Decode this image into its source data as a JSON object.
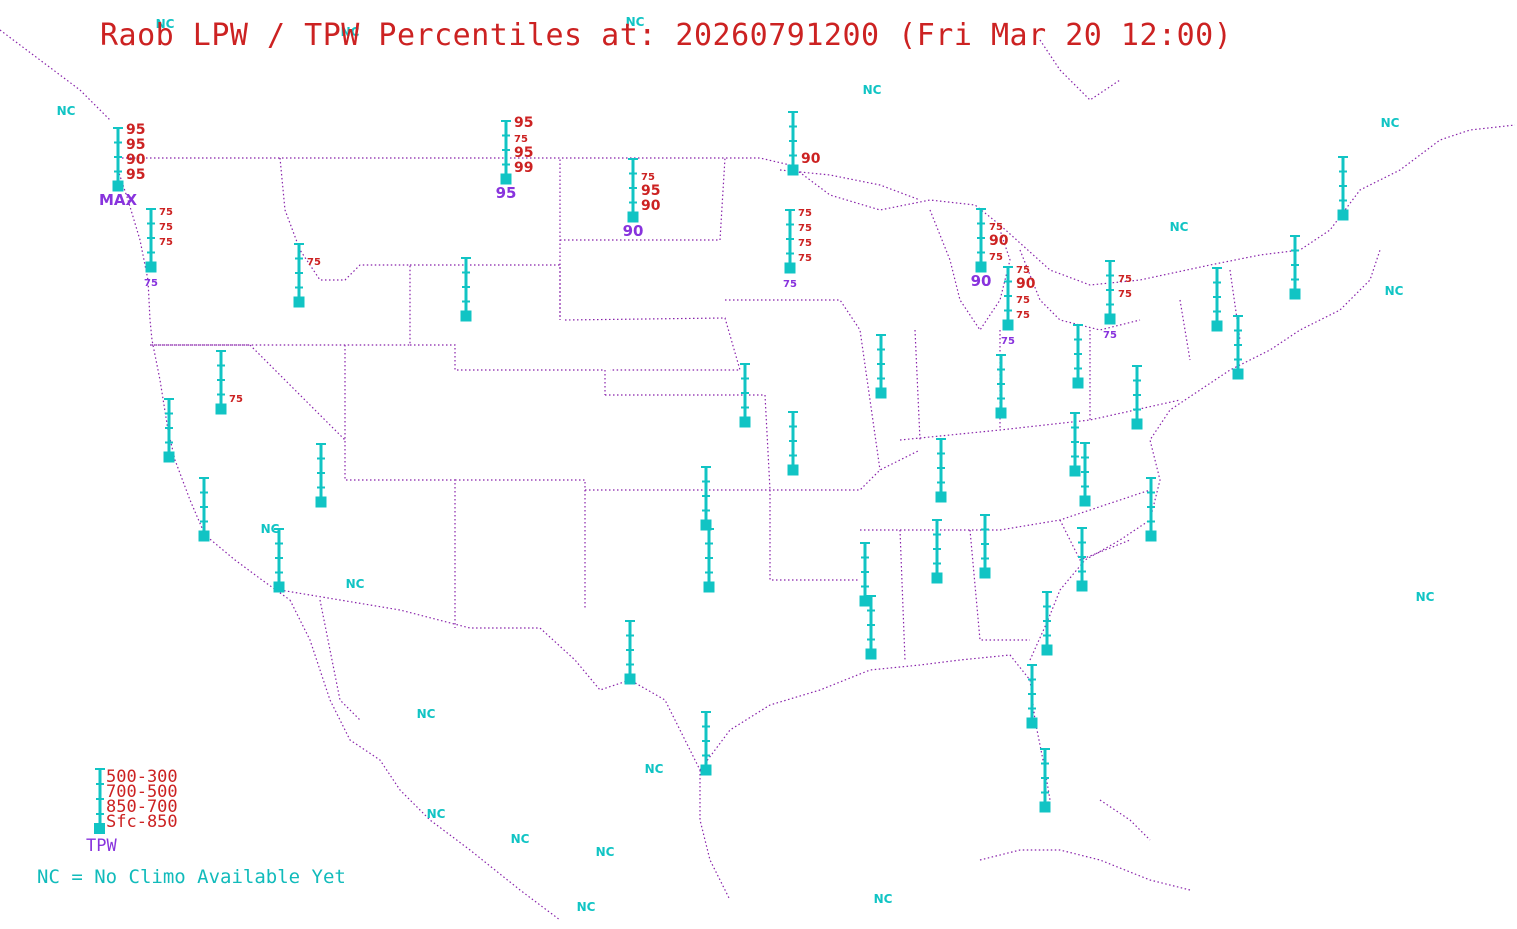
{
  "title": "Raob LPW / TPW Percentiles at: 20260791200 (Fri Mar 20 12:00)",
  "colors": {
    "station": "#11c4c4",
    "percentile": "#cc2222",
    "tpw": "#8833dd",
    "boundary": "#8822aa",
    "title": "#cc2222"
  },
  "legend": {
    "layers": [
      "500-300",
      "700-500",
      "850-700",
      "Sfc-850"
    ],
    "tpw_label": "TPW",
    "nc_note": "NC = No Climo Available Yet"
  },
  "nc_label": "NC",
  "stations": [
    {
      "p": [
        "95",
        "95",
        "90",
        "95"
      ],
      "tpw": "MAX"
    },
    {
      "p": [
        "75",
        "75",
        "75",
        ""
      ],
      "tpw": "75"
    },
    {
      "p": [
        "",
        "75",
        "",
        ""
      ],
      "tpw": ""
    },
    {
      "p": [
        "",
        "",
        "",
        ""
      ],
      "tpw": ""
    },
    {
      "p": [
        "95",
        "75",
        "95",
        "99"
      ],
      "tpw": "95"
    },
    {
      "p": [
        "",
        "75",
        "95",
        "90"
      ],
      "tpw": "90"
    },
    {
      "p": [
        "",
        "",
        "",
        "90"
      ],
      "tpw": ""
    },
    {
      "p": [
        "75",
        "75",
        "75",
        "75"
      ],
      "tpw": "75"
    },
    {
      "p": [
        "",
        "75",
        "90",
        "75"
      ],
      "tpw": "90"
    },
    {
      "p": [
        "75",
        "90",
        "75",
        "75"
      ],
      "tpw": "75"
    },
    {
      "p": [
        "",
        "75",
        "75",
        ""
      ],
      "tpw": "75"
    },
    {
      "p": [
        "",
        "",
        "",
        ""
      ],
      "tpw": ""
    },
    {
      "p": [
        "",
        "",
        "",
        ""
      ],
      "tpw": ""
    },
    {
      "p": [
        "",
        "",
        "",
        ""
      ],
      "tpw": ""
    },
    {
      "p": [
        "",
        "",
        "",
        "75"
      ],
      "tpw": ""
    },
    {
      "p": [
        "",
        "",
        "",
        ""
      ],
      "tpw": ""
    },
    {
      "p": [
        "",
        "",
        "",
        ""
      ],
      "tpw": ""
    },
    {
      "p": [
        "",
        "",
        "",
        ""
      ],
      "tpw": ""
    },
    {
      "p": [
        "",
        "",
        "",
        ""
      ],
      "tpw": ""
    },
    {
      "p": [
        "",
        "",
        "",
        ""
      ],
      "tpw": ""
    },
    {
      "p": [
        "",
        "",
        "",
        ""
      ],
      "tpw": ""
    },
    {
      "p": [
        "",
        "",
        "",
        ""
      ],
      "tpw": ""
    },
    {
      "p": [
        "",
        "",
        "",
        ""
      ],
      "tpw": ""
    },
    {
      "p": [
        "",
        "",
        "",
        ""
      ],
      "tpw": ""
    },
    {
      "p": [
        "",
        "",
        "",
        ""
      ],
      "tpw": ""
    },
    {
      "p": [
        "",
        "",
        "",
        ""
      ],
      "tpw": ""
    },
    {
      "p": [
        "",
        "",
        "",
        ""
      ],
      "tpw": ""
    },
    {
      "p": [
        "",
        "",
        "",
        ""
      ],
      "tpw": ""
    },
    {
      "p": [
        "",
        "",
        "",
        ""
      ],
      "tpw": ""
    },
    {
      "p": [
        "",
        "",
        "",
        ""
      ],
      "tpw": ""
    },
    {
      "p": [
        "",
        "",
        "",
        ""
      ],
      "tpw": ""
    },
    {
      "p": [
        "",
        "",
        "",
        ""
      ],
      "tpw": ""
    },
    {
      "p": [
        "",
        "",
        "",
        ""
      ],
      "tpw": ""
    },
    {
      "p": [
        "",
        "",
        "",
        ""
      ],
      "tpw": ""
    },
    {
      "p": [
        "",
        "",
        "",
        ""
      ],
      "tpw": ""
    },
    {
      "p": [
        "",
        "",
        "",
        ""
      ],
      "tpw": ""
    },
    {
      "p": [
        "",
        "",
        "",
        ""
      ],
      "tpw": ""
    },
    {
      "p": [
        "",
        "",
        "",
        ""
      ],
      "tpw": ""
    },
    {
      "p": [
        "",
        "",
        "",
        ""
      ],
      "tpw": ""
    },
    {
      "p": [
        "",
        "",
        "",
        ""
      ],
      "tpw": ""
    },
    {
      "p": [
        "",
        "",
        "",
        ""
      ],
      "tpw": ""
    },
    {
      "p": [
        "",
        "",
        "",
        ""
      ],
      "tpw": ""
    },
    {
      "p": [
        "",
        "",
        "",
        ""
      ],
      "tpw": ""
    },
    {
      "p": [
        "",
        "",
        "",
        ""
      ],
      "tpw": ""
    },
    {
      "p": [
        "",
        "",
        "",
        ""
      ],
      "tpw": ""
    },
    {
      "p": [
        "",
        "",
        "",
        ""
      ],
      "tpw": ""
    },
    {
      "p": [
        "",
        "",
        "",
        ""
      ],
      "tpw": ""
    },
    {
      "p": [
        "",
        "",
        "",
        ""
      ],
      "tpw": ""
    },
    {
      "p": [
        "",
        "",
        "",
        ""
      ],
      "tpw": ""
    }
  ]
}
